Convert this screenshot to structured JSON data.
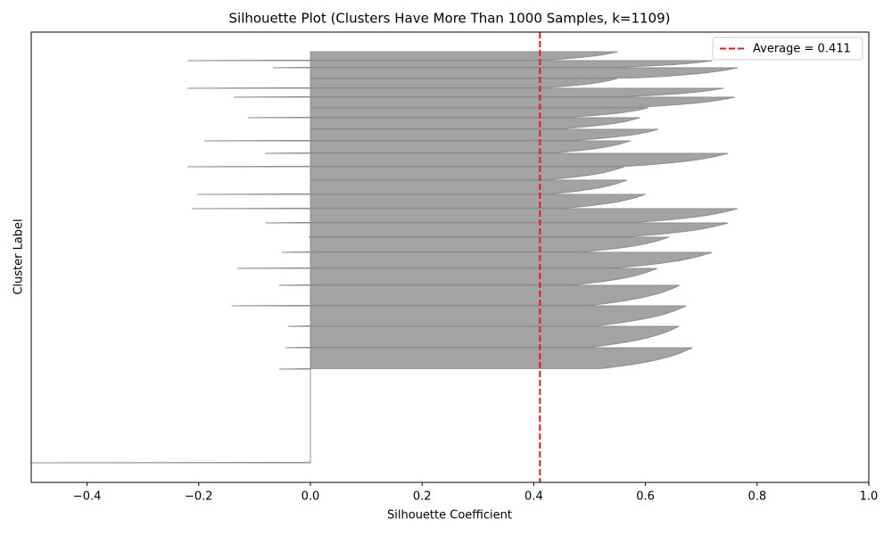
{
  "chart_data": {
    "type": "silhouette",
    "title": "Silhouette Plot (Clusters Have More Than 1000 Samples, k=1109)",
    "x_label": "Silhouette Coefficient",
    "y_label": "Cluster Label",
    "xlim": [
      -0.5,
      1.0
    ],
    "xticks": [
      {
        "value": -0.4,
        "label": "−0.4"
      },
      {
        "value": -0.2,
        "label": "−0.2"
      },
      {
        "value": 0,
        "label": "0.0"
      },
      {
        "value": 0.2,
        "label": "0.2"
      },
      {
        "value": 0.4,
        "label": "0.4"
      },
      {
        "value": 0.6,
        "label": "0.6"
      },
      {
        "value": 0.8,
        "label": "0.8"
      },
      {
        "value": 1.0,
        "label": "1.0"
      }
    ],
    "ylim": [
      -22,
      483
    ],
    "sizes": [
      105,
      24,
      24,
      23,
      23,
      19,
      18,
      17,
      16,
      16,
      16,
      16,
      15,
      15,
      14,
      13,
      13,
      11,
      12,
      10,
      11,
      12,
      8,
      10
    ],
    "max_values": [
      0,
      0.684,
      0.66,
      0.673,
      0.661,
      0.621,
      0.719,
      0.642,
      0.748,
      0.765,
      0.6,
      0.567,
      0.562,
      0.748,
      0.573,
      0.623,
      0.59,
      0.605,
      0.76,
      0.74,
      0.55,
      0.765,
      0.72,
      0.55
    ],
    "min_values": [
      -0.5,
      -0.056,
      -0.045,
      -0.04,
      -0.141,
      -0.056,
      -0.131,
      -0.051,
      -0.003,
      -0.08,
      -0.212,
      -0.203,
      0,
      -0.22,
      -0.081,
      -0.19,
      0,
      -0.112,
      0,
      -0.137,
      -0.22,
      0,
      -0.067,
      -0.22
    ],
    "color": "#a3a3a3",
    "average": 0.411,
    "average_label": "Average = 0.411",
    "average_color": "#e41a1c",
    "legend": "upper right"
  }
}
